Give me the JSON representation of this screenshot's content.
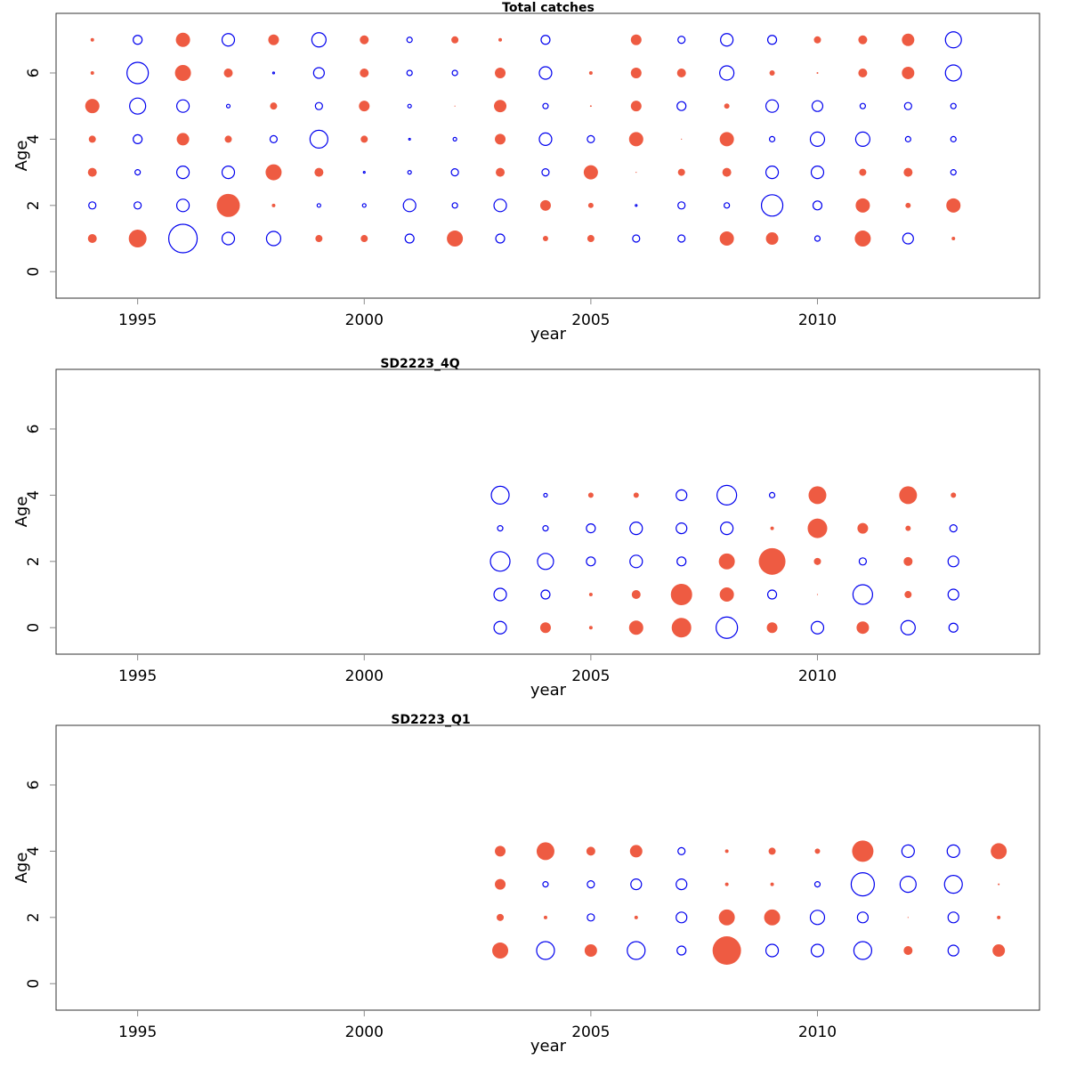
{
  "chart_data": [
    {
      "type": "scatter",
      "subtype": "bubble",
      "title": "Total catches",
      "xlabel": "year",
      "ylabel": "Age",
      "xlim": [
        1993.2,
        2014.9
      ],
      "ylim": [
        -0.8,
        7.8
      ],
      "xticks": [
        1995,
        2000,
        2005,
        2010
      ],
      "yticks": [
        0,
        2,
        4,
        6
      ],
      "positive_color": "#EE5B42",
      "negative_color": "#0000EE",
      "size_scale": "sqrt",
      "x": [
        1994,
        1995,
        1996,
        1997,
        1998,
        1999,
        2000,
        2001,
        2002,
        2003,
        2004,
        2005,
        2006,
        2007,
        2008,
        2009,
        2010,
        2011,
        2012,
        2013
      ],
      "series": [
        {
          "age": 7,
          "values": [
            0.25,
            -1.56,
            4.0,
            -3.06,
            2.25,
            -4.0,
            1.56,
            -0.56,
            1.0,
            0.25,
            -1.56,
            0,
            2.25,
            -1.0,
            -3.06,
            -1.56,
            1.0,
            1.56,
            3.06,
            -5.06
          ]
        },
        {
          "age": 6,
          "values": [
            0.25,
            -9.0,
            5.06,
            1.56,
            -0.06,
            -2.25,
            1.56,
            -0.56,
            -0.56,
            2.25,
            -3.06,
            0.25,
            2.25,
            1.56,
            -4.0,
            0.56,
            0.06,
            1.56,
            3.06,
            -5.06
          ]
        },
        {
          "age": 5,
          "values": [
            4.0,
            -5.06,
            -3.06,
            -0.25,
            1.0,
            -1.0,
            2.25,
            -0.25,
            0.01,
            3.06,
            -0.56,
            0.06,
            2.25,
            -1.56,
            0.56,
            -3.06,
            -2.25,
            -0.56,
            -1.0,
            -0.56
          ]
        },
        {
          "age": 4,
          "values": [
            1.0,
            -1.56,
            3.06,
            1.0,
            -1.0,
            -6.25,
            1.0,
            -0.06,
            -0.25,
            2.25,
            -3.06,
            -1.0,
            4.0,
            0.02,
            4.0,
            -0.56,
            -4.0,
            -4.0,
            -0.56,
            -0.56
          ]
        },
        {
          "age": 3,
          "values": [
            1.56,
            -0.56,
            -3.06,
            -3.06,
            5.06,
            1.56,
            -0.06,
            -0.25,
            -1.0,
            1.56,
            -1.0,
            4.0,
            0.02,
            1.0,
            1.56,
            -3.06,
            -3.06,
            1.0,
            1.56,
            -0.56
          ]
        },
        {
          "age": 2,
          "values": [
            -1.0,
            -1.0,
            -3.06,
            10.56,
            0.25,
            -0.25,
            -0.25,
            -3.06,
            -0.56,
            -3.06,
            2.25,
            0.56,
            -0.06,
            -1.0,
            -0.56,
            -9.0,
            -1.56,
            4.0,
            0.56,
            4.0
          ]
        },
        {
          "age": 1,
          "values": [
            1.56,
            6.25,
            -16.0,
            -3.06,
            -4.0,
            1.0,
            1.0,
            -1.56,
            5.06,
            -1.56,
            0.56,
            1.0,
            -1.0,
            -1.0,
            4.0,
            3.06,
            -0.56,
            5.06,
            -2.25,
            0.25
          ]
        }
      ]
    },
    {
      "type": "scatter",
      "subtype": "bubble",
      "title": "SD2223_4Q",
      "xlabel": "year",
      "ylabel": "Age",
      "xlim": [
        1993.2,
        2014.9
      ],
      "ylim": [
        -0.8,
        7.8
      ],
      "xticks": [
        1995,
        2000,
        2005,
        2010
      ],
      "yticks": [
        0,
        2,
        4,
        6
      ],
      "positive_color": "#EE5B42",
      "negative_color": "#0000EE",
      "size_scale": "sqrt",
      "x": [
        2003,
        2004,
        2005,
        2006,
        2007,
        2008,
        2009,
        2010,
        2011,
        2012,
        2013
      ],
      "series": [
        {
          "age": 4,
          "values": [
            -6.25,
            -0.25,
            0.56,
            0.56,
            -2.25,
            -7.56,
            -0.56,
            6.25,
            0,
            6.25,
            0.56
          ]
        },
        {
          "age": 3,
          "values": [
            -0.56,
            -0.56,
            -1.56,
            -3.06,
            -2.25,
            -3.06,
            0.25,
            7.56,
            2.25,
            0.56,
            -1.0
          ]
        },
        {
          "age": 2,
          "values": [
            -7.56,
            -5.06,
            -1.56,
            -3.06,
            -1.56,
            5.06,
            14.06,
            1.0,
            -1.0,
            1.56,
            -2.25
          ]
        },
        {
          "age": 1,
          "values": [
            -3.06,
            -1.56,
            0.25,
            1.56,
            9.0,
            4.0,
            -1.56,
            0.02,
            -7.56,
            1.0,
            -2.25
          ]
        },
        {
          "age": 0,
          "values": [
            -3.06,
            2.25,
            0.25,
            4.0,
            7.56,
            -9.0,
            2.25,
            -3.06,
            3.06,
            -4.0,
            -1.56
          ]
        }
      ]
    },
    {
      "type": "scatter",
      "subtype": "bubble",
      "title": "SD2223_Q1",
      "xlabel": "year",
      "ylabel": "Age",
      "xlim": [
        1993.2,
        2014.9
      ],
      "ylim": [
        -0.8,
        7.8
      ],
      "xticks": [
        1995,
        2000,
        2005,
        2010
      ],
      "yticks": [
        0,
        2,
        4,
        6
      ],
      "positive_color": "#EE5B42",
      "negative_color": "#0000EE",
      "size_scale": "sqrt",
      "x": [
        2003,
        2004,
        2005,
        2006,
        2007,
        2008,
        2009,
        2010,
        2011,
        2012,
        2013,
        2014
      ],
      "series": [
        {
          "age": 4,
          "values": [
            2.25,
            6.25,
            1.56,
            3.06,
            -1.0,
            0.25,
            1.0,
            0.56,
            9.0,
            -3.06,
            -3.06,
            5.06
          ]
        },
        {
          "age": 3,
          "values": [
            2.25,
            -0.56,
            -1.0,
            -2.25,
            -2.25,
            0.25,
            0.25,
            -0.56,
            -10.56,
            -5.06,
            -6.25,
            0.06
          ]
        },
        {
          "age": 2,
          "values": [
            1.0,
            0.25,
            -1.0,
            0.25,
            -2.25,
            5.06,
            5.06,
            -4.0,
            -2.25,
            0.02,
            -2.25,
            0.25
          ]
        },
        {
          "age": 1,
          "values": [
            5.06,
            -6.25,
            3.06,
            -6.25,
            -1.56,
            16.0,
            -3.06,
            -3.06,
            -6.25,
            1.56,
            -2.25,
            3.06
          ]
        }
      ]
    }
  ]
}
